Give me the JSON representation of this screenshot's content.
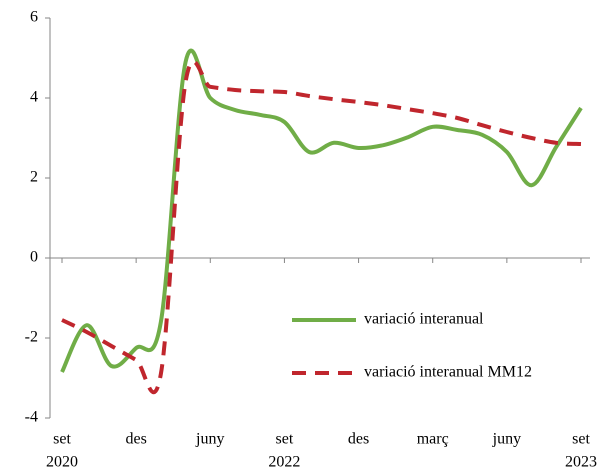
{
  "chart_data": {
    "type": "line",
    "categories": [
      "set",
      null,
      null,
      "des",
      null,
      null,
      "juny",
      null,
      null,
      "set",
      null,
      null,
      "des",
      null,
      null,
      "març",
      null,
      null,
      "juny",
      null,
      null,
      "set"
    ],
    "years": [
      "2020",
      null,
      null,
      null,
      null,
      null,
      null,
      null,
      null,
      "2022",
      null,
      null,
      null,
      null,
      null,
      null,
      null,
      null,
      null,
      null,
      null,
      "2023"
    ],
    "series": [
      {
        "name": "variació interanual",
        "color": "#70ad47",
        "dash": false,
        "values": [
          -2.85,
          -1.68,
          -2.7,
          -2.25,
          -1.6,
          4.9,
          4.0,
          3.7,
          3.58,
          3.4,
          2.65,
          2.88,
          2.75,
          2.82,
          3.02,
          3.28,
          3.2,
          3.08,
          2.65,
          1.82,
          2.78,
          3.75
        ]
      },
      {
        "name": "variació interanual MM12",
        "color": "#c0262d",
        "dash": true,
        "values": [
          -1.55,
          -1.85,
          -2.2,
          -2.55,
          -2.9,
          4.4,
          4.28,
          4.2,
          4.17,
          4.15,
          4.05,
          3.97,
          3.9,
          3.82,
          3.72,
          3.62,
          3.5,
          3.32,
          3.15,
          3.0,
          2.88,
          2.85
        ]
      }
    ],
    "ylim": [
      -4,
      6
    ],
    "yticks": [
      -4,
      -2,
      0,
      2,
      4,
      6
    ],
    "legend": "lower right"
  }
}
